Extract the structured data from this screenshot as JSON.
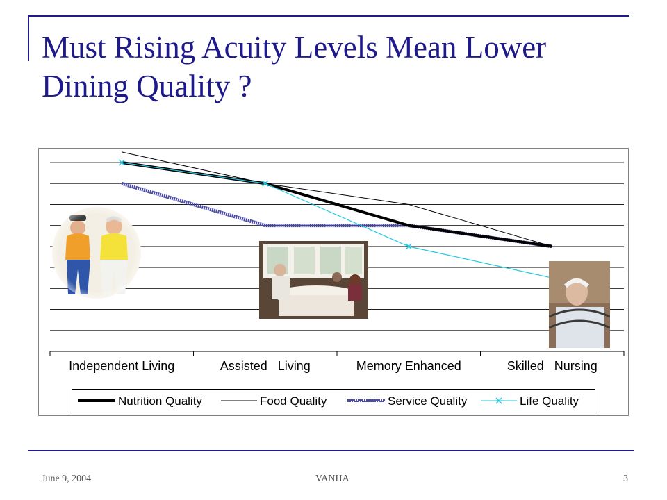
{
  "slide": {
    "title": "Must Rising Acuity Levels Mean Lower Dining Quality ?",
    "footer_date": "June 9, 2004",
    "footer_org": "VANHA",
    "page_number": "3",
    "accent_color": "#1f1a8c"
  },
  "chart_data": {
    "type": "line",
    "title": "",
    "xlabel": "",
    "ylabel": "",
    "ylim": [
      0,
      9
    ],
    "grid": true,
    "legend": "bottom",
    "categories": [
      "Independent Living",
      "Assisted   Living",
      "Memory Enhanced",
      "Skilled   Nursing"
    ],
    "series": [
      {
        "name": "Nutrition Quality",
        "values": [
          9,
          8,
          6,
          5
        ],
        "color": "#000000",
        "style": "thick"
      },
      {
        "name": "Food Quality",
        "values": [
          9.5,
          8,
          7,
          5
        ],
        "color": "#000000",
        "style": "thin"
      },
      {
        "name": "Service Quality",
        "values": [
          8,
          6,
          6,
          5
        ],
        "color": "#2a2a8a",
        "style": "hatched"
      },
      {
        "name": "Life Quality",
        "values": [
          9,
          8,
          5,
          3.5
        ],
        "color": "#22c8e0",
        "style": "x-marker"
      }
    ]
  }
}
